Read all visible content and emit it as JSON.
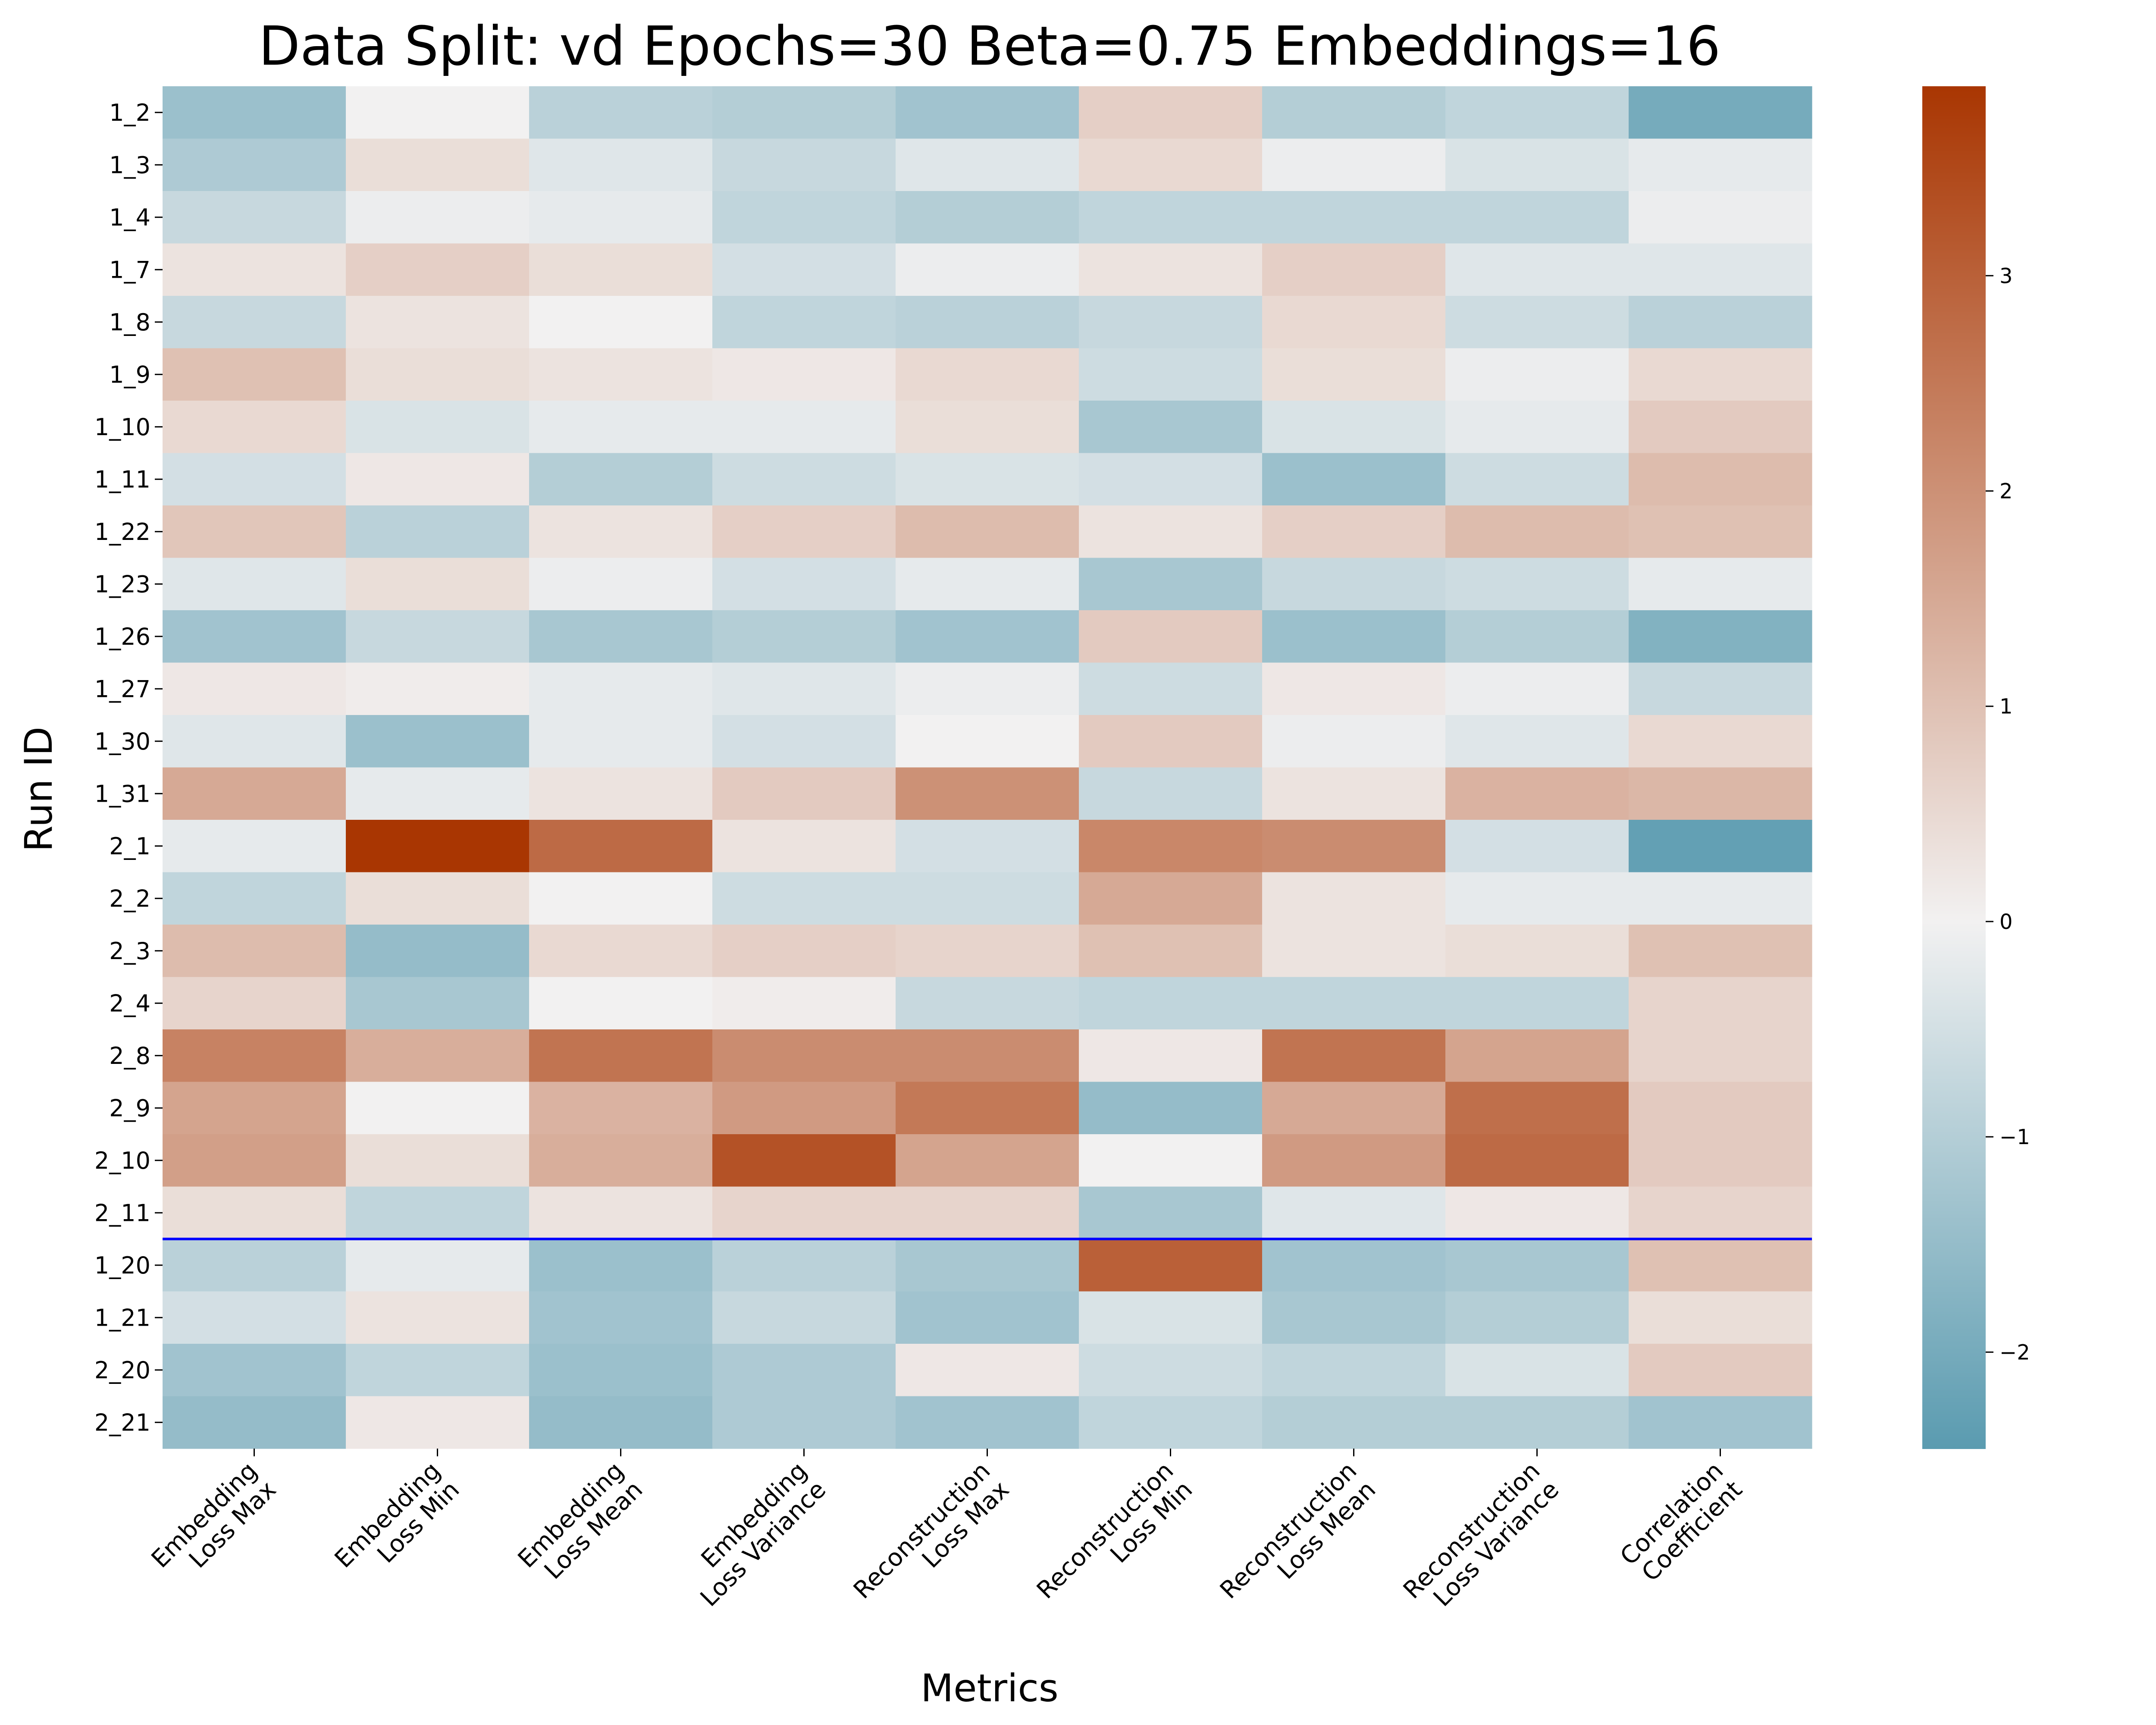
{
  "chart_data": {
    "type": "heatmap",
    "title": "Data Split: vd Epochs=30 Beta=0.75 Embeddings=16",
    "xlabel": "Metrics",
    "ylabel": "Run ID",
    "columns": [
      [
        "Embedding",
        "Loss Max"
      ],
      [
        "Embedding",
        "Loss Min"
      ],
      [
        "Embedding",
        "Loss Mean"
      ],
      [
        "Embedding",
        "Loss Variance"
      ],
      [
        "Reconstruction",
        "Loss Max"
      ],
      [
        "Reconstruction",
        "Loss Min"
      ],
      [
        "Reconstruction",
        "Loss Mean"
      ],
      [
        "Reconstruction",
        "Loss Variance"
      ],
      [
        "Correlation",
        "Coefficient"
      ]
    ],
    "rows": [
      "1_2",
      "1_3",
      "1_4",
      "1_7",
      "1_8",
      "1_9",
      "1_10",
      "1_11",
      "1_22",
      "1_23",
      "1_26",
      "1_27",
      "1_30",
      "1_31",
      "2_1",
      "2_2",
      "2_3",
      "2_4",
      "2_8",
      "2_9",
      "2_10",
      "2_11",
      "1_20",
      "1_21",
      "2_20",
      "2_21"
    ],
    "values": [
      [
        -1.4,
        0.0,
        -0.9,
        -1.0,
        -1.3,
        0.7,
        -1.0,
        -0.8,
        -2.0
      ],
      [
        -1.1,
        0.4,
        -0.3,
        -0.7,
        -0.3,
        0.5,
        -0.1,
        -0.4,
        -0.2
      ],
      [
        -0.7,
        -0.1,
        -0.2,
        -0.8,
        -1.0,
        -0.8,
        -0.8,
        -0.8,
        -0.1
      ],
      [
        0.3,
        0.7,
        0.4,
        -0.5,
        -0.1,
        0.3,
        0.7,
        -0.3,
        -0.3
      ],
      [
        -0.7,
        0.3,
        0.0,
        -0.8,
        -0.9,
        -0.7,
        0.5,
        -0.6,
        -0.9
      ],
      [
        1.0,
        0.4,
        0.3,
        0.2,
        0.5,
        -0.6,
        0.4,
        -0.1,
        0.5
      ],
      [
        0.5,
        -0.4,
        -0.2,
        -0.2,
        0.4,
        -1.2,
        -0.4,
        -0.2,
        0.8
      ],
      [
        -0.5,
        0.2,
        -1.0,
        -0.6,
        -0.4,
        -0.5,
        -1.4,
        -0.6,
        1.1
      ],
      [
        0.9,
        -0.9,
        0.3,
        0.7,
        1.1,
        0.3,
        0.7,
        1.1,
        1.0
      ],
      [
        -0.3,
        0.4,
        -0.1,
        -0.5,
        -0.2,
        -1.2,
        -0.7,
        -0.6,
        -0.2
      ],
      [
        -1.3,
        -0.7,
        -1.2,
        -1.0,
        -1.3,
        0.8,
        -1.4,
        -1.0,
        -1.8
      ],
      [
        0.2,
        0.1,
        -0.2,
        -0.3,
        -0.1,
        -0.6,
        0.2,
        -0.1,
        -0.7
      ],
      [
        -0.3,
        -1.4,
        -0.2,
        -0.5,
        0.0,
        0.8,
        -0.1,
        -0.3,
        0.5
      ],
      [
        1.5,
        -0.2,
        0.3,
        0.8,
        2.0,
        -0.7,
        0.3,
        1.3,
        1.2
      ],
      [
        -0.2,
        3.9,
        2.8,
        0.3,
        -0.5,
        2.2,
        2.1,
        -0.5,
        -2.3
      ],
      [
        -0.8,
        0.4,
        0.0,
        -0.6,
        -0.6,
        1.5,
        0.3,
        -0.2,
        -0.2
      ],
      [
        1.1,
        -1.5,
        0.5,
        0.7,
        0.6,
        1.0,
        0.3,
        0.4,
        1.0
      ],
      [
        0.6,
        -1.2,
        0.0,
        0.1,
        -0.7,
        -0.8,
        -0.8,
        -0.8,
        0.6
      ],
      [
        2.3,
        1.4,
        2.6,
        2.1,
        2.1,
        0.2,
        2.6,
        1.6,
        0.6
      ],
      [
        1.6,
        0.0,
        1.3,
        1.8,
        2.5,
        -1.5,
        1.5,
        2.7,
        0.8
      ],
      [
        1.7,
        0.4,
        1.4,
        3.3,
        1.6,
        0.0,
        1.8,
        2.8,
        0.8
      ],
      [
        0.4,
        -0.8,
        0.3,
        0.6,
        0.6,
        -1.2,
        -0.3,
        0.2,
        0.6
      ],
      [
        -0.9,
        -0.2,
        -1.4,
        -0.9,
        -1.2,
        3.0,
        -1.3,
        -1.2,
        1.0
      ],
      [
        -0.5,
        0.3,
        -1.3,
        -0.7,
        -1.3,
        -0.4,
        -1.2,
        -1.0,
        0.4
      ],
      [
        -1.3,
        -0.8,
        -1.4,
        -1.1,
        0.2,
        -0.6,
        -0.8,
        -0.4,
        0.8
      ],
      [
        -1.5,
        0.2,
        -1.5,
        -1.1,
        -1.3,
        -0.8,
        -1.0,
        -1.0,
        -1.3
      ]
    ],
    "vmin": -2.45,
    "vmax": 3.88,
    "color_low": "#5a9bb0",
    "color_mid": "#f2f1f1",
    "color_high": "#a93602",
    "colorbar_ticks": [
      -2,
      -1,
      0,
      1,
      2,
      3
    ],
    "separator_after_row": "2_11",
    "separator_color": "#0000ff"
  }
}
